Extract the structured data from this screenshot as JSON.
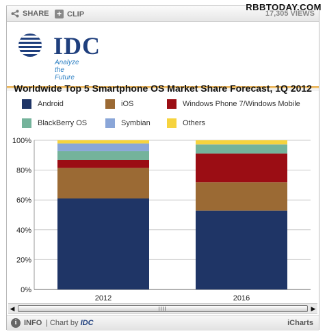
{
  "watermark": "RBBTODAY.COM",
  "toolbar": {
    "share_label": "SHARE",
    "clip_label": "CLIP",
    "views": "17,305 VIEWS"
  },
  "brand": {
    "logo_text": "IDC",
    "tagline": "Analyze the Future"
  },
  "colors": {
    "Android": "#1f3566",
    "iOS": "#9b6a34",
    "Windows Phone 7/Windows Mobile": "#9b0d14",
    "BlackBerry OS": "#74b39b",
    "Symbian": "#8aa6d8",
    "Others": "#f6d33e"
  },
  "chart_data": {
    "type": "bar",
    "stacked": true,
    "title": "Worldwide Top 5 Smartphone OS Market Share Forecast, 1Q 2012",
    "categories": [
      "2012",
      "2016"
    ],
    "series": [
      {
        "name": "Android",
        "values": [
          61.0,
          52.9
        ]
      },
      {
        "name": "iOS",
        "values": [
          20.5,
          19.0
        ]
      },
      {
        "name": "Windows Phone 7/Windows Mobile",
        "values": [
          5.2,
          19.2
        ]
      },
      {
        "name": "BlackBerry OS",
        "values": [
          6.0,
          5.9
        ]
      },
      {
        "name": "Symbian",
        "values": [
          5.2,
          0.2
        ]
      },
      {
        "name": "Others",
        "values": [
          2.1,
          2.8
        ]
      }
    ],
    "ylim": [
      0,
      100
    ],
    "yticks": [
      "0%",
      "20%",
      "40%",
      "60%",
      "80%",
      "100%"
    ],
    "grid": true,
    "legend_position": "top"
  },
  "footer": {
    "info_label": "INFO",
    "chart_by": "| Chart by",
    "chart_by_brand": "IDC",
    "icharts": "iCharts"
  }
}
